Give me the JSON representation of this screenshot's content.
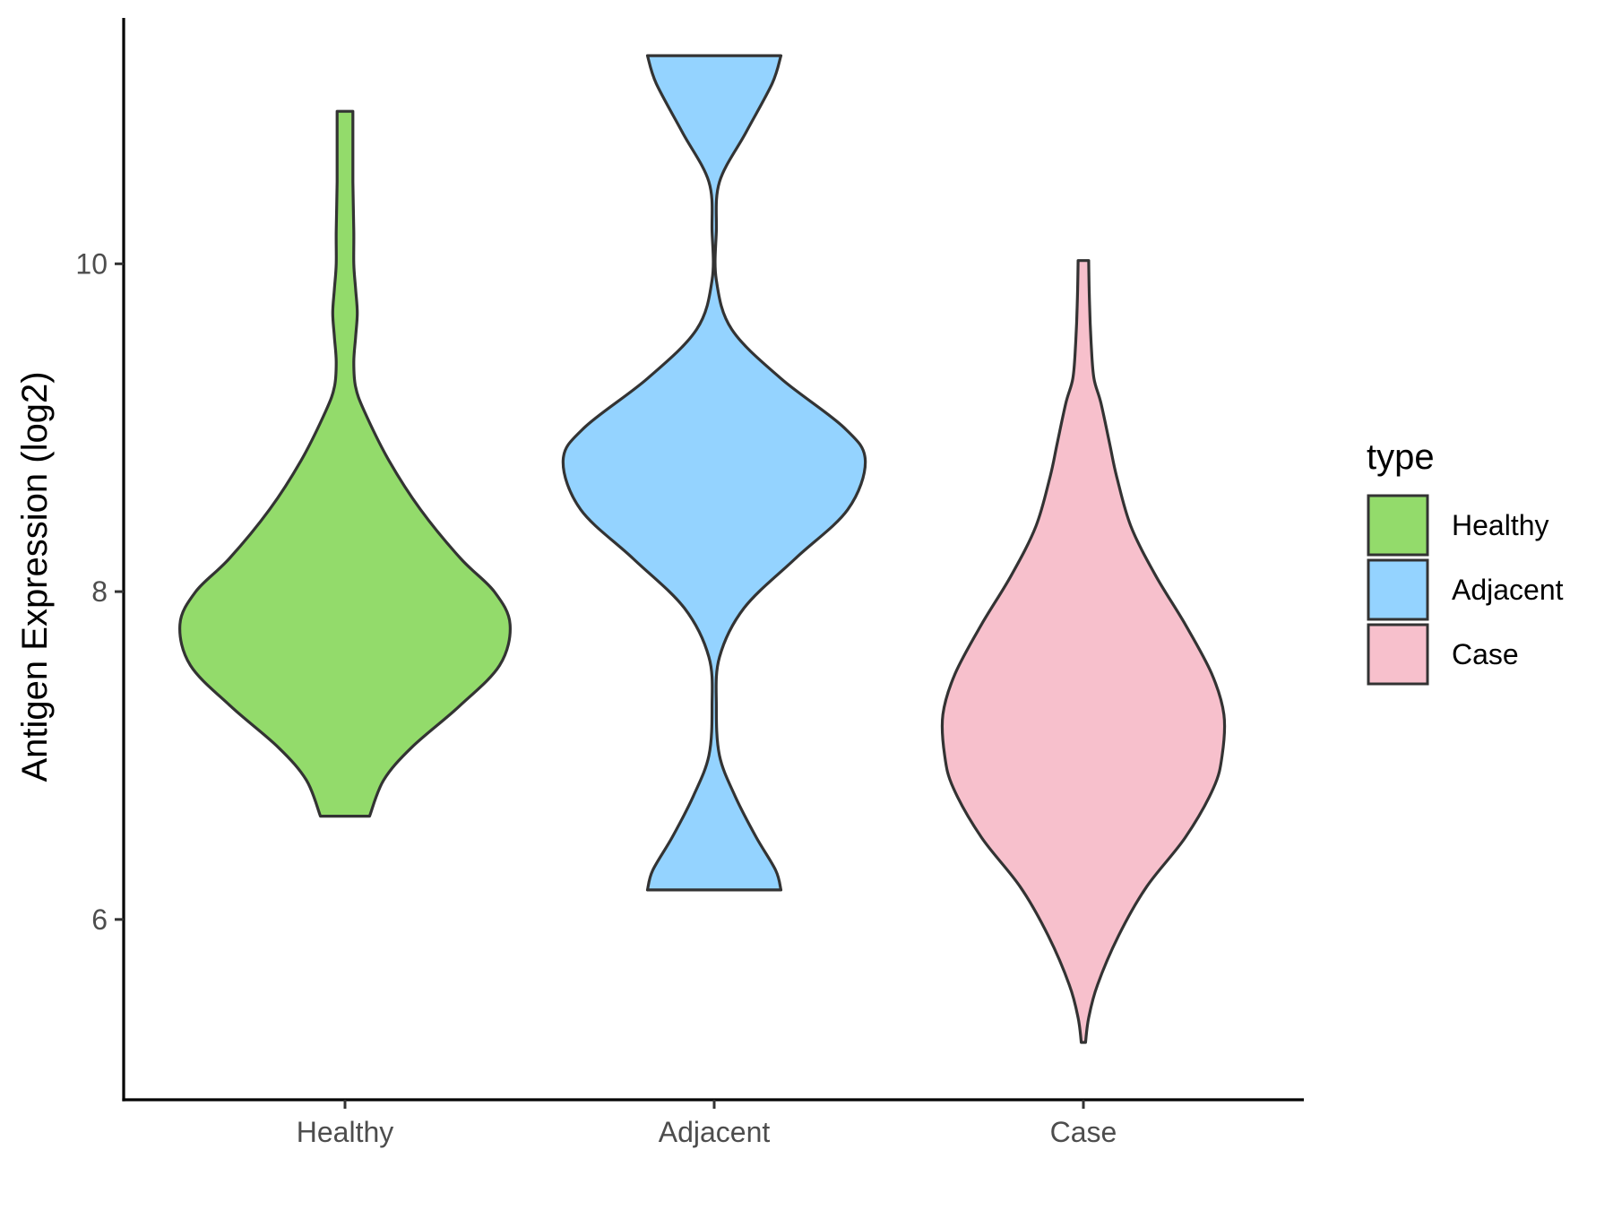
{
  "chart_data": {
    "type": "violin",
    "xlabel": "",
    "ylabel": "Antigen Expression (log2)",
    "ylim": [
      4.9,
      11.5
    ],
    "yticks": [
      6,
      8,
      10
    ],
    "categories": [
      "Healthy",
      "Adjacent",
      "Case"
    ],
    "grid": false,
    "legend": {
      "title": "type",
      "position": "right",
      "entries": [
        {
          "label": "Healthy",
          "color": "#93DB6B"
        },
        {
          "label": "Adjacent",
          "color": "#94D3FF"
        },
        {
          "label": "Case",
          "color": "#F7C0CC"
        }
      ]
    },
    "series": [
      {
        "name": "Healthy",
        "color": "#93DB6B",
        "profile": [
          [
            6.63,
            0.14
          ],
          [
            6.85,
            0.22
          ],
          [
            7.05,
            0.38
          ],
          [
            7.3,
            0.65
          ],
          [
            7.55,
            0.88
          ],
          [
            7.8,
            0.94
          ],
          [
            8.0,
            0.85
          ],
          [
            8.2,
            0.66
          ],
          [
            8.5,
            0.43
          ],
          [
            8.8,
            0.25
          ],
          [
            9.1,
            0.11
          ],
          [
            9.25,
            0.06
          ],
          [
            9.4,
            0.05
          ],
          [
            9.55,
            0.06
          ],
          [
            9.7,
            0.07
          ],
          [
            9.85,
            0.06
          ],
          [
            10.0,
            0.05
          ],
          [
            10.2,
            0.05
          ],
          [
            10.5,
            0.045
          ],
          [
            10.75,
            0.045
          ],
          [
            10.93,
            0.045
          ]
        ]
      },
      {
        "name": "Adjacent",
        "color": "#94D3FF",
        "profile": [
          [
            6.18,
            0.38
          ],
          [
            6.3,
            0.35
          ],
          [
            6.5,
            0.24
          ],
          [
            6.75,
            0.12
          ],
          [
            7.0,
            0.03
          ],
          [
            7.3,
            0.0
          ],
          [
            7.6,
            0.03
          ],
          [
            7.9,
            0.17
          ],
          [
            8.2,
            0.46
          ],
          [
            8.5,
            0.76
          ],
          [
            8.8,
            0.86
          ],
          [
            9.0,
            0.74
          ],
          [
            9.3,
            0.38
          ],
          [
            9.6,
            0.1
          ],
          [
            9.9,
            0.01
          ],
          [
            10.2,
            0.0
          ],
          [
            10.5,
            0.03
          ],
          [
            10.8,
            0.18
          ],
          [
            11.1,
            0.33
          ],
          [
            11.27,
            0.38
          ]
        ]
      },
      {
        "name": "Case",
        "color": "#F7C0CC",
        "profile": [
          [
            5.25,
            0.01
          ],
          [
            5.4,
            0.03
          ],
          [
            5.6,
            0.08
          ],
          [
            5.9,
            0.2
          ],
          [
            6.2,
            0.36
          ],
          [
            6.5,
            0.58
          ],
          [
            6.8,
            0.74
          ],
          [
            7.0,
            0.79
          ],
          [
            7.25,
            0.8
          ],
          [
            7.5,
            0.73
          ],
          [
            7.8,
            0.58
          ],
          [
            8.1,
            0.41
          ],
          [
            8.4,
            0.27
          ],
          [
            8.7,
            0.19
          ],
          [
            8.9,
            0.15
          ],
          [
            9.15,
            0.1
          ],
          [
            9.3,
            0.06
          ],
          [
            9.5,
            0.045
          ],
          [
            9.75,
            0.035
          ],
          [
            10.02,
            0.03
          ]
        ]
      }
    ]
  }
}
